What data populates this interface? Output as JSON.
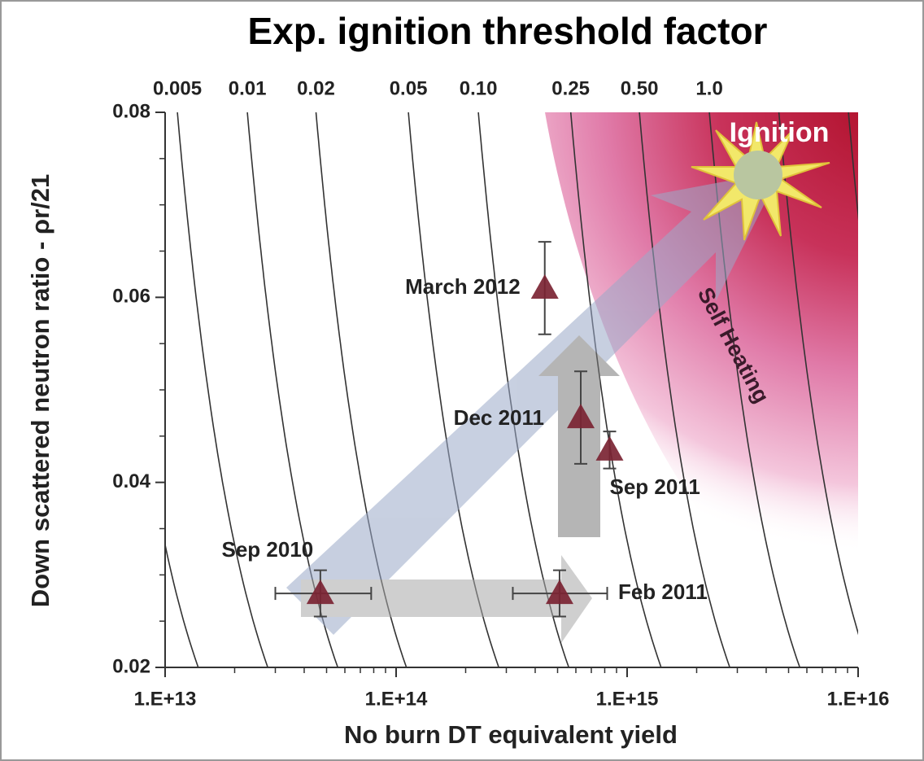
{
  "chart_data": {
    "type": "scatter",
    "title": "Exp. ignition threshold factor",
    "x_label": "No burn DT equivalent yield",
    "y_label": "Down scattered neutron ratio - ρr/21",
    "xlog": true,
    "xlim": [
      10000000000000.0,
      1e+16
    ],
    "xticks": [
      {
        "value": 10000000000000.0,
        "label": "1.E+13"
      },
      {
        "value": 100000000000000.0,
        "label": "1.E+14"
      },
      {
        "value": 1000000000000000.0,
        "label": "1.E+15"
      },
      {
        "value": 1e+16,
        "label": "1.E+16"
      }
    ],
    "x2ticks": [
      {
        "value": 11300000000000.0,
        "label": "0.005"
      },
      {
        "value": 22700000000000.0,
        "label": "0.01"
      },
      {
        "value": 45000000000000.0,
        "label": "0.02"
      },
      {
        "value": 113000000000000.0,
        "label": "0.05"
      },
      {
        "value": 227000000000000.0,
        "label": "0.10"
      },
      {
        "value": 570000000000000.0,
        "label": "0.25"
      },
      {
        "value": 1130000000000000.0,
        "label": "0.50"
      },
      {
        "value": 2270000000000000.0,
        "label": "1.0"
      }
    ],
    "ylim": [
      0.02,
      0.08
    ],
    "yticks": [
      0.02,
      0.04,
      0.06,
      0.08
    ],
    "color": "#7b2433",
    "labels": [
      "Sep 2010",
      "Feb 2011",
      "Dec 2011",
      "Sep 2011",
      "March 2012"
    ],
    "x": [
      47000000000000.0,
      510000000000000.0,
      630000000000000.0,
      840000000000000.0,
      440000000000000.0
    ],
    "y": [
      0.028,
      0.028,
      0.047,
      0.0435,
      0.061
    ],
    "yerr": [
      0.0025,
      0.0025,
      0.005,
      0.002,
      0.005
    ],
    "xerr_low": [
      30000000000000.0,
      320000000000000.0,
      null,
      null,
      null
    ],
    "xerr_high": [
      78000000000000.0,
      820000000000000.0,
      null,
      null,
      null
    ],
    "annotations": [
      "Ignition",
      "Self Heating"
    ]
  }
}
